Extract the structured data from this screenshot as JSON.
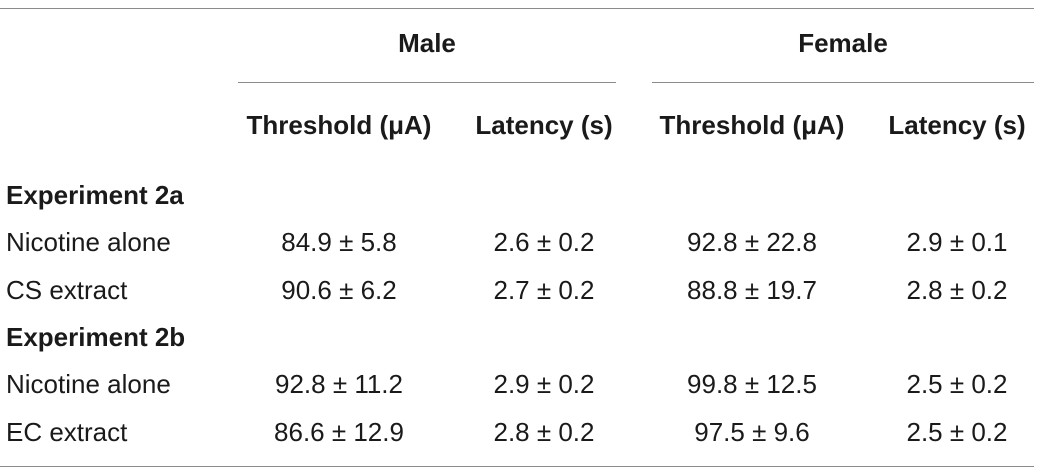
{
  "table": {
    "groups": [
      "Male",
      "Female"
    ],
    "columns": [
      "Threshold (μA)",
      "Latency (s)",
      "Threshold (μA)",
      "Latency (s)"
    ],
    "sections": [
      {
        "title": "Experiment 2a",
        "rows": [
          {
            "label": "Nicotine alone",
            "values": [
              "84.9 ± 5.8",
              "2.6 ± 0.2",
              "92.8 ± 22.8",
              "2.9 ± 0.1"
            ]
          },
          {
            "label": "CS extract",
            "values": [
              "90.6 ± 6.2",
              "2.7 ± 0.2",
              "88.8 ± 19.7",
              "2.8 ± 0.2"
            ]
          }
        ]
      },
      {
        "title": "Experiment 2b",
        "rows": [
          {
            "label": "Nicotine alone",
            "values": [
              "92.8 ± 11.2",
              "2.9 ± 0.2",
              "99.8 ± 12.5",
              "2.5 ± 0.2"
            ]
          },
          {
            "label": "EC extract",
            "values": [
              "86.6 ± 12.9",
              "2.8 ± 0.2",
              "97.5 ± 9.6",
              "2.5 ± 0.2"
            ]
          }
        ]
      }
    ]
  }
}
